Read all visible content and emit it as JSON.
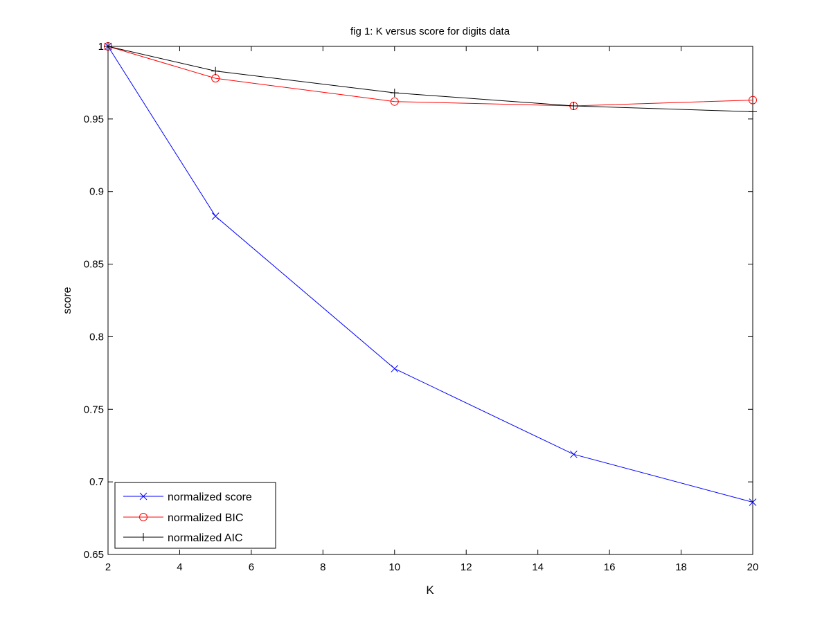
{
  "chart_data": {
    "type": "line",
    "title": "fig 1: K versus score for digits data",
    "xlabel": "K",
    "ylabel": "score",
    "xlim": [
      2,
      20
    ],
    "ylim": [
      0.65,
      1
    ],
    "xticks": [
      2,
      4,
      6,
      8,
      10,
      12,
      14,
      16,
      18,
      20
    ],
    "yticks": [
      0.65,
      0.7,
      0.75,
      0.8,
      0.85,
      0.9,
      0.95,
      1
    ],
    "ytick_labels": [
      "0.65",
      "0.7",
      "0.75",
      "0.8",
      "0.85",
      "0.9",
      "0.95",
      "1"
    ],
    "grid": false,
    "legend_position": "bottom-left",
    "series": [
      {
        "name": "normalized score",
        "color": "#0000ff",
        "marker": "x",
        "x": [
          2,
          5,
          10,
          15,
          20
        ],
        "y": [
          1.0,
          0.883,
          0.778,
          0.719,
          0.686
        ]
      },
      {
        "name": "normalized BIC",
        "color": "#ff0000",
        "marker": "o",
        "x": [
          2,
          5,
          10,
          15,
          20
        ],
        "y": [
          1.0,
          0.978,
          0.962,
          0.959,
          0.963
        ]
      },
      {
        "name": "normalized AIC",
        "color": "#000000",
        "marker": "+",
        "x": [
          2,
          5,
          10,
          15,
          20
        ],
        "y": [
          1.0,
          0.983,
          0.968,
          0.959,
          0.955
        ]
      }
    ]
  }
}
